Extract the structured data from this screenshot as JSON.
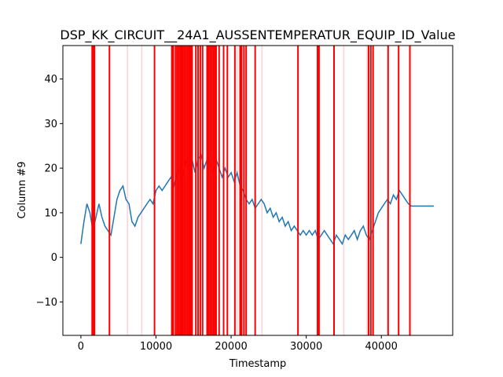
{
  "chart_data": {
    "type": "line",
    "title": "DSP_KK_CIRCUIT__24A1_AUSSENTEMPERATUR_EQUIP_ID_Value",
    "xlabel": "Timestamp",
    "ylabel": "Column #9",
    "xlim": [
      -2400,
      49500
    ],
    "ylim": [
      -17.5,
      47.5
    ],
    "xticks": [
      0,
      10000,
      20000,
      30000,
      40000
    ],
    "xtick_labels": [
      "0",
      "10000",
      "20000",
      "30000",
      "40000"
    ],
    "yticks": [
      -10,
      0,
      10,
      20,
      30,
      40
    ],
    "ytick_labels": [
      "−10",
      "0",
      "10",
      "20",
      "30",
      "40"
    ],
    "grid": false,
    "colors": {
      "series": "#1f77b4",
      "anomaly": "#ff0000",
      "frame": "#000000"
    },
    "series": [
      {
        "points": [
          [
            0,
            3
          ],
          [
            400,
            8
          ],
          [
            800,
            12
          ],
          [
            1200,
            10
          ],
          [
            1600,
            6
          ],
          [
            2000,
            9
          ],
          [
            2400,
            12
          ],
          [
            2800,
            9
          ],
          [
            3200,
            7
          ],
          [
            3600,
            6
          ],
          [
            4000,
            5
          ],
          [
            4400,
            9
          ],
          [
            4800,
            13
          ],
          [
            5200,
            15
          ],
          [
            5600,
            16
          ],
          [
            6000,
            13
          ],
          [
            6400,
            12
          ],
          [
            6800,
            8
          ],
          [
            7200,
            7
          ],
          [
            7600,
            9
          ],
          [
            8000,
            10
          ],
          [
            8400,
            11
          ],
          [
            8800,
            12
          ],
          [
            9200,
            13
          ],
          [
            9600,
            12
          ],
          [
            10000,
            15
          ],
          [
            10400,
            16
          ],
          [
            10800,
            15
          ],
          [
            11200,
            16
          ],
          [
            11600,
            17
          ],
          [
            12000,
            18
          ],
          [
            12400,
            16
          ],
          [
            12800,
            19
          ],
          [
            13200,
            20
          ],
          [
            13600,
            18
          ],
          [
            14000,
            22
          ],
          [
            14400,
            20
          ],
          [
            14800,
            22
          ],
          [
            15200,
            19
          ],
          [
            15600,
            22
          ],
          [
            16000,
            23
          ],
          [
            16400,
            20
          ],
          [
            16800,
            22
          ],
          [
            17200,
            21
          ],
          [
            17600,
            19
          ],
          [
            18000,
            22
          ],
          [
            18400,
            20
          ],
          [
            18800,
            18
          ],
          [
            19200,
            20
          ],
          [
            19600,
            18
          ],
          [
            20000,
            19
          ],
          [
            20400,
            17
          ],
          [
            20800,
            19
          ],
          [
            21200,
            16
          ],
          [
            21600,
            15
          ],
          [
            22000,
            13
          ],
          [
            22400,
            12
          ],
          [
            22800,
            13
          ],
          [
            23200,
            11
          ],
          [
            23600,
            12
          ],
          [
            24000,
            13
          ],
          [
            24400,
            12
          ],
          [
            24800,
            10
          ],
          [
            25200,
            11
          ],
          [
            25600,
            9
          ],
          [
            26000,
            10
          ],
          [
            26400,
            8
          ],
          [
            26800,
            9
          ],
          [
            27200,
            7
          ],
          [
            27600,
            8
          ],
          [
            28000,
            6
          ],
          [
            28400,
            7
          ],
          [
            28800,
            6
          ],
          [
            29200,
            5
          ],
          [
            29600,
            6
          ],
          [
            30000,
            5
          ],
          [
            30400,
            6
          ],
          [
            30800,
            5
          ],
          [
            31200,
            6
          ],
          [
            31600,
            4
          ],
          [
            32000,
            5
          ],
          [
            32400,
            6
          ],
          [
            32800,
            5
          ],
          [
            33200,
            4
          ],
          [
            33600,
            3
          ],
          [
            34000,
            5
          ],
          [
            34400,
            4
          ],
          [
            34800,
            3
          ],
          [
            35200,
            5
          ],
          [
            35600,
            4
          ],
          [
            36000,
            5
          ],
          [
            36400,
            6
          ],
          [
            36800,
            4
          ],
          [
            37200,
            6
          ],
          [
            37600,
            7
          ],
          [
            38000,
            5
          ],
          [
            38400,
            4
          ],
          [
            38800,
            6
          ],
          [
            39200,
            8
          ],
          [
            39600,
            10
          ],
          [
            40000,
            11
          ],
          [
            40400,
            12
          ],
          [
            40800,
            13
          ],
          [
            41200,
            12
          ],
          [
            41600,
            14
          ],
          [
            42000,
            13
          ],
          [
            42400,
            15
          ],
          [
            42800,
            14
          ],
          [
            43200,
            13
          ],
          [
            43600,
            12
          ],
          [
            44000,
            11.5
          ],
          [
            47000,
            11.5
          ]
        ]
      }
    ],
    "anomaly_lines": [
      1500,
      1600,
      1700,
      1800,
      3800,
      9800,
      12100,
      12300,
      12600,
      12800,
      13000,
      13200,
      13400,
      13600,
      13800,
      14000,
      14200,
      14400,
      14600,
      14800,
      15300,
      15600,
      15900,
      16200,
      16800,
      17000,
      17200,
      17400,
      17600,
      17800,
      18000,
      18400,
      19000,
      19500,
      20500,
      21200,
      21400,
      21700,
      22000,
      23200,
      28900,
      31500,
      31700,
      33700,
      38300,
      38600,
      38900,
      40900,
      42300,
      43800
    ],
    "faint_lines": [
      6200,
      8100,
      12900,
      20800,
      24100,
      35000,
      38100
    ]
  }
}
